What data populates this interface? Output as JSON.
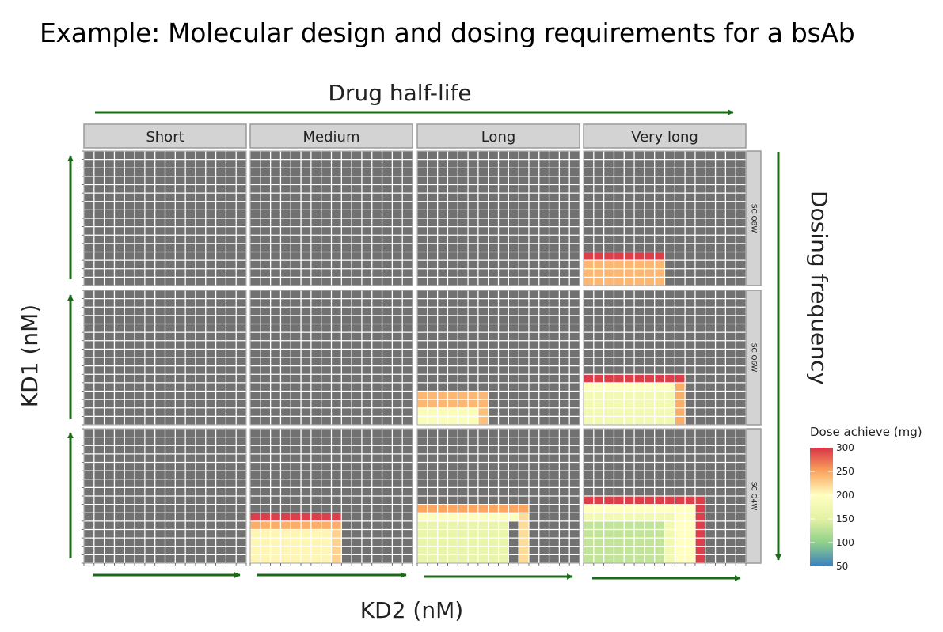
{
  "title": "Example: Molecular design and dosing requirements for a bsAb",
  "top_arrow_label": "Drug half-life",
  "right_arrow_label": "Dosing frequency",
  "colors": {
    "arrow": "#1a6b1a",
    "panel_bg": "#717171",
    "strip_bg": "#d3d3d3",
    "strip_border": "#9a9a9a",
    "grid_line": "#ffffff"
  },
  "chart_data": {
    "type": "heatmap",
    "xlabel": "KD2 (nM)",
    "ylabel": "KD1 (nM)",
    "columns": [
      "Short",
      "Medium",
      "Long",
      "Very long"
    ],
    "rows": [
      "SC Q8W",
      "SC Q6W",
      "SC Q4W"
    ],
    "grid_size": {
      "cols": 16,
      "rows": 16
    },
    "legend": {
      "title": "Dose achieve (mg)",
      "range": [
        50,
        300
      ],
      "ticks": [
        300,
        250,
        200,
        150,
        100,
        50
      ],
      "colorscale": [
        [
          50,
          "#3a7fbf"
        ],
        [
          100,
          "#8fd08a"
        ],
        [
          150,
          "#e4f2a4"
        ],
        [
          200,
          "#ffffc0"
        ],
        [
          250,
          "#fba55e"
        ],
        [
          300,
          "#d93447"
        ]
      ]
    },
    "panels": [
      {
        "row": 0,
        "col": 0,
        "bands": []
      },
      {
        "row": 0,
        "col": 1,
        "bands": []
      },
      {
        "row": 0,
        "col": 2,
        "bands": []
      },
      {
        "row": 0,
        "col": 3,
        "bands": [
          {
            "kd2_cells": [
              0,
              8
            ],
            "kd1_cells": [
              0,
              3
            ],
            "dose": 240
          },
          {
            "kd2_cells": [
              0,
              8
            ],
            "kd1_cells": [
              3,
              4
            ],
            "dose": 295
          }
        ]
      },
      {
        "row": 1,
        "col": 0,
        "bands": []
      },
      {
        "row": 1,
        "col": 1,
        "bands": []
      },
      {
        "row": 1,
        "col": 2,
        "bands": [
          {
            "kd2_cells": [
              0,
              6
            ],
            "kd1_cells": [
              0,
              2
            ],
            "dose": 190
          },
          {
            "kd2_cells": [
              6,
              7
            ],
            "kd1_cells": [
              0,
              2
            ],
            "dose": 235
          },
          {
            "kd2_cells": [
              0,
              7
            ],
            "kd1_cells": [
              2,
              4
            ],
            "dose": 240
          }
        ]
      },
      {
        "row": 1,
        "col": 3,
        "bands": [
          {
            "kd2_cells": [
              0,
              9
            ],
            "kd1_cells": [
              0,
              4
            ],
            "dose": 175
          },
          {
            "kd2_cells": [
              0,
              9
            ],
            "kd1_cells": [
              4,
              5
            ],
            "dose": 200
          },
          {
            "kd2_cells": [
              9,
              10
            ],
            "kd1_cells": [
              0,
              5
            ],
            "dose": 245
          },
          {
            "kd2_cells": [
              0,
              10
            ],
            "kd1_cells": [
              5,
              6
            ],
            "dose": 295
          }
        ]
      },
      {
        "row": 2,
        "col": 0,
        "bands": []
      },
      {
        "row": 2,
        "col": 1,
        "bands": [
          {
            "kd2_cells": [
              0,
              8
            ],
            "kd1_cells": [
              0,
              4
            ],
            "dose": 205
          },
          {
            "kd2_cells": [
              8,
              9
            ],
            "kd1_cells": [
              0,
              4
            ],
            "dose": 225
          },
          {
            "kd2_cells": [
              0,
              9
            ],
            "kd1_cells": [
              4,
              5
            ],
            "dose": 245
          },
          {
            "kd2_cells": [
              0,
              9
            ],
            "kd1_cells": [
              5,
              6
            ],
            "dose": 295
          }
        ]
      },
      {
        "row": 2,
        "col": 2,
        "bands": [
          {
            "kd2_cells": [
              0,
              9
            ],
            "kd1_cells": [
              0,
              5
            ],
            "dose": 160
          },
          {
            "kd2_cells": [
              0,
              10
            ],
            "kd1_cells": [
              5,
              6
            ],
            "dose": 195
          },
          {
            "kd2_cells": [
              10,
              11
            ],
            "kd1_cells": [
              0,
              6
            ],
            "dose": 220
          },
          {
            "kd2_cells": [
              0,
              11
            ],
            "kd1_cells": [
              6,
              7
            ],
            "dose": 250
          }
        ]
      },
      {
        "row": 2,
        "col": 3,
        "bands": [
          {
            "kd2_cells": [
              0,
              8
            ],
            "kd1_cells": [
              0,
              5
            ],
            "dose": 130
          },
          {
            "kd2_cells": [
              8,
              9
            ],
            "kd1_cells": [
              0,
              5
            ],
            "dose": 175
          },
          {
            "kd2_cells": [
              0,
              9
            ],
            "kd1_cells": [
              5,
              6
            ],
            "dose": 175
          },
          {
            "kd2_cells": [
              9,
              11
            ],
            "kd1_cells": [
              0,
              6
            ],
            "dose": 200
          },
          {
            "kd2_cells": [
              0,
              11
            ],
            "kd1_cells": [
              6,
              7
            ],
            "dose": 200
          },
          {
            "kd2_cells": [
              11,
              12
            ],
            "kd1_cells": [
              0,
              8
            ],
            "dose": 295
          },
          {
            "kd2_cells": [
              0,
              12
            ],
            "kd1_cells": [
              7,
              8
            ],
            "dose": 295
          }
        ]
      }
    ]
  }
}
